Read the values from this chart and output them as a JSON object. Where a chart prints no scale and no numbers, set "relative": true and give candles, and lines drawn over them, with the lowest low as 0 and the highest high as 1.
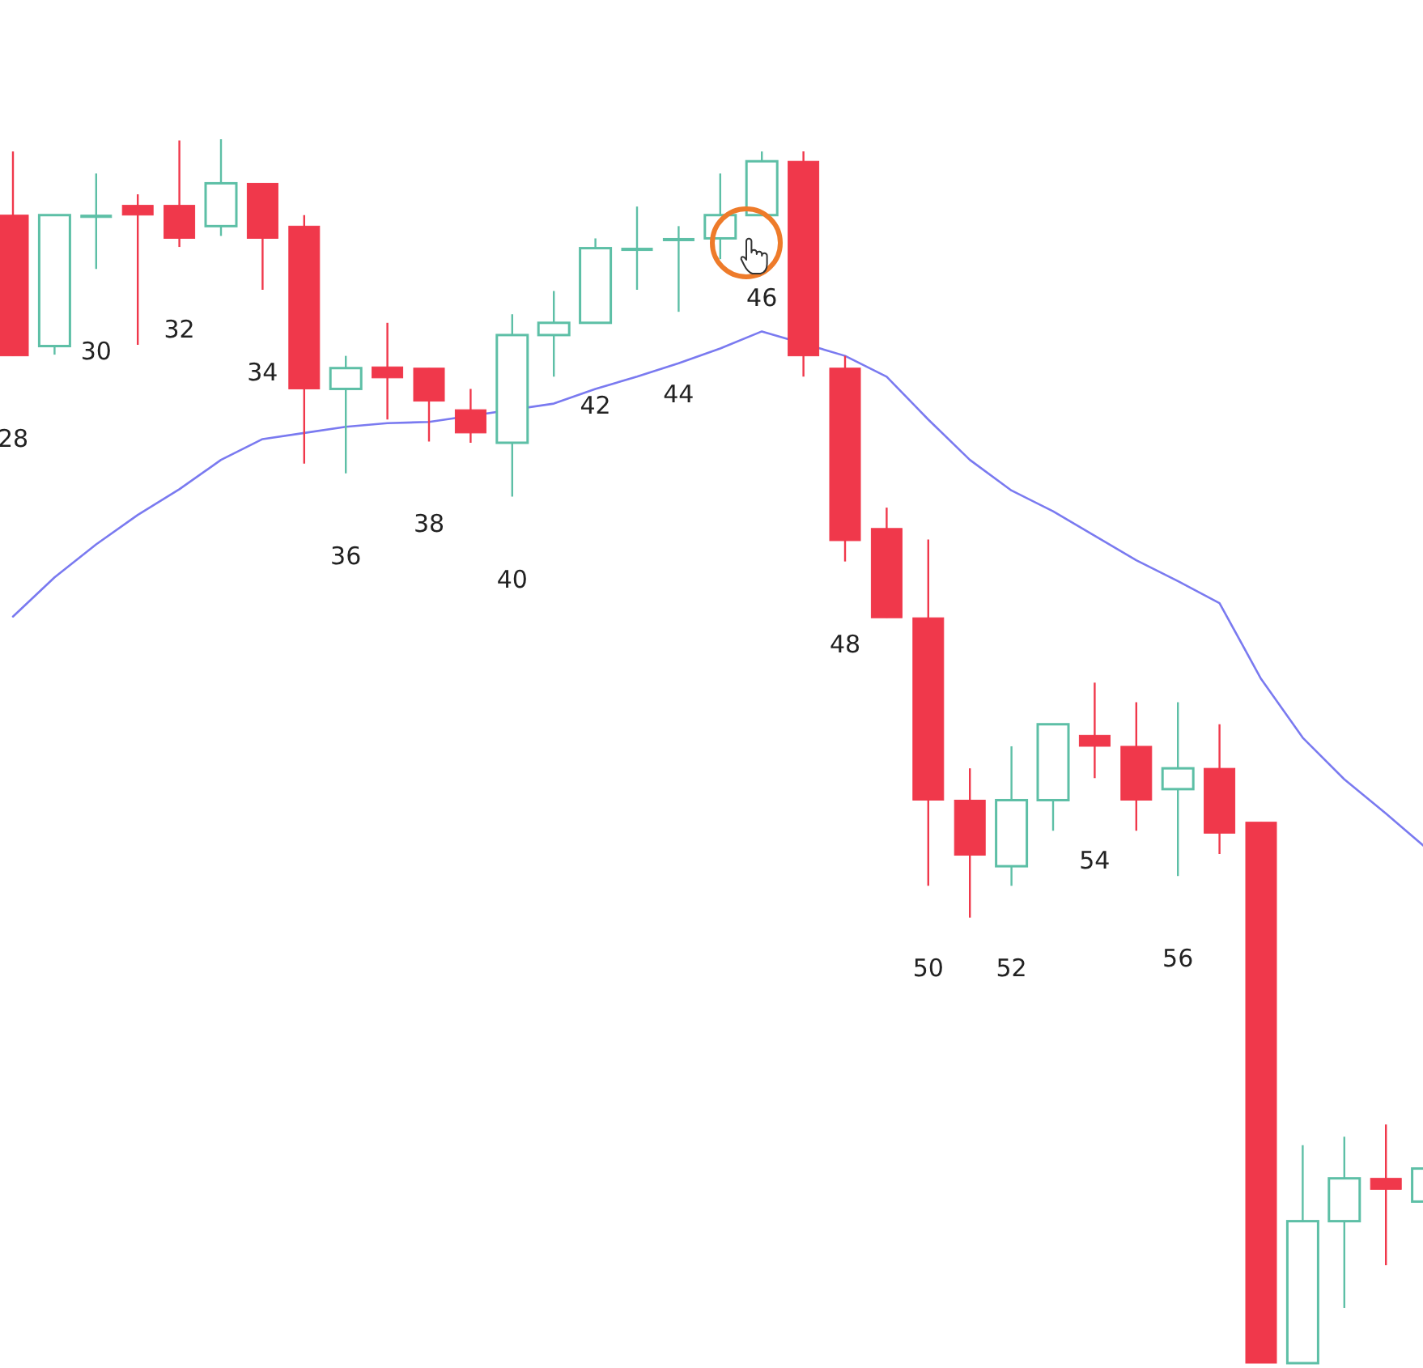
{
  "chart_data": {
    "type": "candlestick",
    "relative": true,
    "categories": [
      "28",
      null,
      "30",
      null,
      "32",
      null,
      "34",
      null,
      "36",
      null,
      "38",
      null,
      "40",
      null,
      "42",
      null,
      "44",
      null,
      "46",
      null,
      "48",
      null,
      "50",
      null,
      "52",
      null,
      "54",
      null,
      "56",
      null,
      null,
      null,
      null,
      null,
      null
    ],
    "ohlc": [
      [
        0.938,
        0.99,
        0.823,
        0.823
      ],
      [
        0.831,
        0.938,
        0.824,
        0.938
      ],
      [
        0.938,
        0.972,
        0.894,
        0.938
      ],
      [
        0.946,
        0.955,
        0.832,
        0.938
      ],
      [
        0.946,
        0.999,
        0.912,
        0.919
      ],
      [
        0.929,
        1.0,
        0.921,
        0.964
      ],
      [
        0.964,
        0.964,
        0.877,
        0.919
      ],
      [
        0.929,
        0.938,
        0.735,
        0.796
      ],
      [
        0.796,
        0.823,
        0.727,
        0.813
      ],
      [
        0.814,
        0.85,
        0.771,
        0.805
      ],
      [
        0.813,
        0.813,
        0.753,
        0.786
      ],
      [
        0.779,
        0.796,
        0.752,
        0.76
      ],
      [
        0.752,
        0.857,
        0.708,
        0.84
      ],
      [
        0.84,
        0.876,
        0.806,
        0.85
      ],
      [
        0.85,
        0.919,
        0.85,
        0.911
      ],
      [
        0.911,
        0.945,
        0.877,
        0.911
      ],
      [
        0.919,
        0.929,
        0.859,
        0.919
      ],
      [
        0.919,
        0.972,
        0.902,
        0.938
      ],
      [
        0.938,
        0.99,
        0.938,
        0.982
      ],
      [
        0.982,
        0.99,
        0.806,
        0.823
      ],
      [
        0.813,
        0.823,
        0.655,
        0.672
      ],
      [
        0.682,
        0.699,
        0.609,
        0.609
      ],
      [
        0.609,
        0.673,
        0.39,
        0.46
      ],
      [
        0.46,
        0.486,
        0.364,
        0.415
      ],
      [
        0.406,
        0.504,
        0.39,
        0.46
      ],
      [
        0.46,
        0.522,
        0.435,
        0.522
      ],
      [
        0.513,
        0.556,
        0.478,
        0.504
      ],
      [
        0.504,
        0.54,
        0.435,
        0.46
      ],
      [
        0.469,
        0.54,
        0.398,
        0.486
      ],
      [
        0.486,
        0.522,
        0.416,
        0.433
      ],
      [
        0.442,
        0.442,
        0,
        0
      ],
      [
        0,
        0.178,
        0,
        0.116
      ],
      [
        0.116,
        0.185,
        0.045,
        0.151
      ],
      [
        0.151,
        0.195,
        0.08,
        0.142
      ],
      [
        0.132,
        0.159,
        0.132,
        0.159
      ]
    ],
    "colors": [
      "#f0384b",
      "#5dbfa6",
      "#5dbfa6",
      "#f0384b",
      "#f0384b",
      "#5dbfa6",
      "#f0384b",
      "#f0384b",
      "#5dbfa6",
      "#f0384b",
      "#f0384b",
      "#f0384b",
      "#5dbfa6",
      "#5dbfa6",
      "#5dbfa6",
      "#5dbfa6",
      "#5dbfa6",
      "#5dbfa6",
      "#5dbfa6",
      "#f0384b",
      "#f0384b",
      "#f0384b",
      "#f0384b",
      "#f0384b",
      "#5dbfa6",
      "#5dbfa6",
      "#f0384b",
      "#f0384b",
      "#5dbfa6",
      "#f0384b",
      "#f0384b",
      "#5dbfa6",
      "#5dbfa6",
      "#f0384b",
      "#5dbfa6"
    ],
    "series": [
      {
        "type": "line",
        "color": "#7a7af0",
        "values": [
          0.61,
          0.642,
          0.669,
          0.693,
          0.714,
          0.738,
          0.755,
          0.76,
          0.765,
          0.768,
          0.769,
          null,
          null,
          0.784,
          0.796,
          0.806,
          0.817,
          0.829,
          0.843,
          null,
          0.823,
          0.806,
          0.771,
          0.738,
          0.713,
          0.696,
          0.676,
          0.656,
          0.639,
          0.621,
          0.559,
          0.511,
          0.477,
          0.449,
          0.42
        ]
      }
    ]
  }
}
